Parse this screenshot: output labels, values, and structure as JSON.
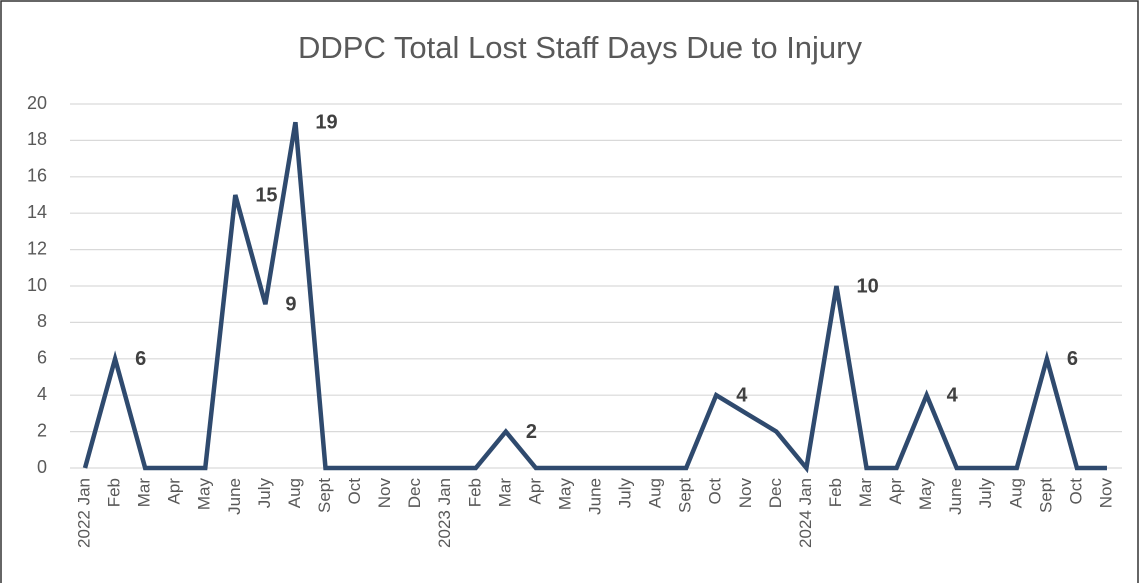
{
  "chart_data": {
    "type": "line",
    "title": "DDPC Total Lost Staff Days Due to Injury",
    "categories": [
      "2022 Jan",
      "Feb",
      "Mar",
      "Apr",
      "May",
      "June",
      "July",
      "Aug",
      "Sept",
      "Oct",
      "Nov",
      "Dec",
      "2023 Jan",
      "Feb",
      "Mar",
      "Apr",
      "May",
      "June",
      "July",
      "Aug",
      "Sept",
      "Oct",
      "Nov",
      "Dec",
      "2024 Jan",
      "Feb",
      "Mar",
      "Apr",
      "May",
      "June",
      "July",
      "Aug",
      "Sept",
      "Oct",
      "Nov"
    ],
    "series": [
      {
        "name": "Lost Staff Days",
        "color": "#2f4a6e",
        "values": [
          0,
          6,
          0,
          0,
          0,
          15,
          9,
          19,
          0,
          0,
          0,
          0,
          0,
          0,
          2,
          0,
          0,
          0,
          0,
          0,
          0,
          4,
          3,
          2,
          0,
          10,
          0,
          0,
          4,
          0,
          0,
          0,
          6,
          0,
          0
        ],
        "value_labels": [
          null,
          "6",
          null,
          null,
          null,
          "15",
          "9",
          "19",
          null,
          null,
          null,
          null,
          null,
          null,
          "2",
          null,
          null,
          null,
          null,
          null,
          null,
          "4",
          null,
          null,
          null,
          "10",
          null,
          null,
          "4",
          null,
          null,
          null,
          "6",
          null,
          null
        ]
      }
    ],
    "ylim": [
      0,
      20
    ],
    "yticks": [
      0,
      2,
      4,
      6,
      8,
      10,
      12,
      14,
      16,
      18,
      20
    ],
    "grid": true
  }
}
